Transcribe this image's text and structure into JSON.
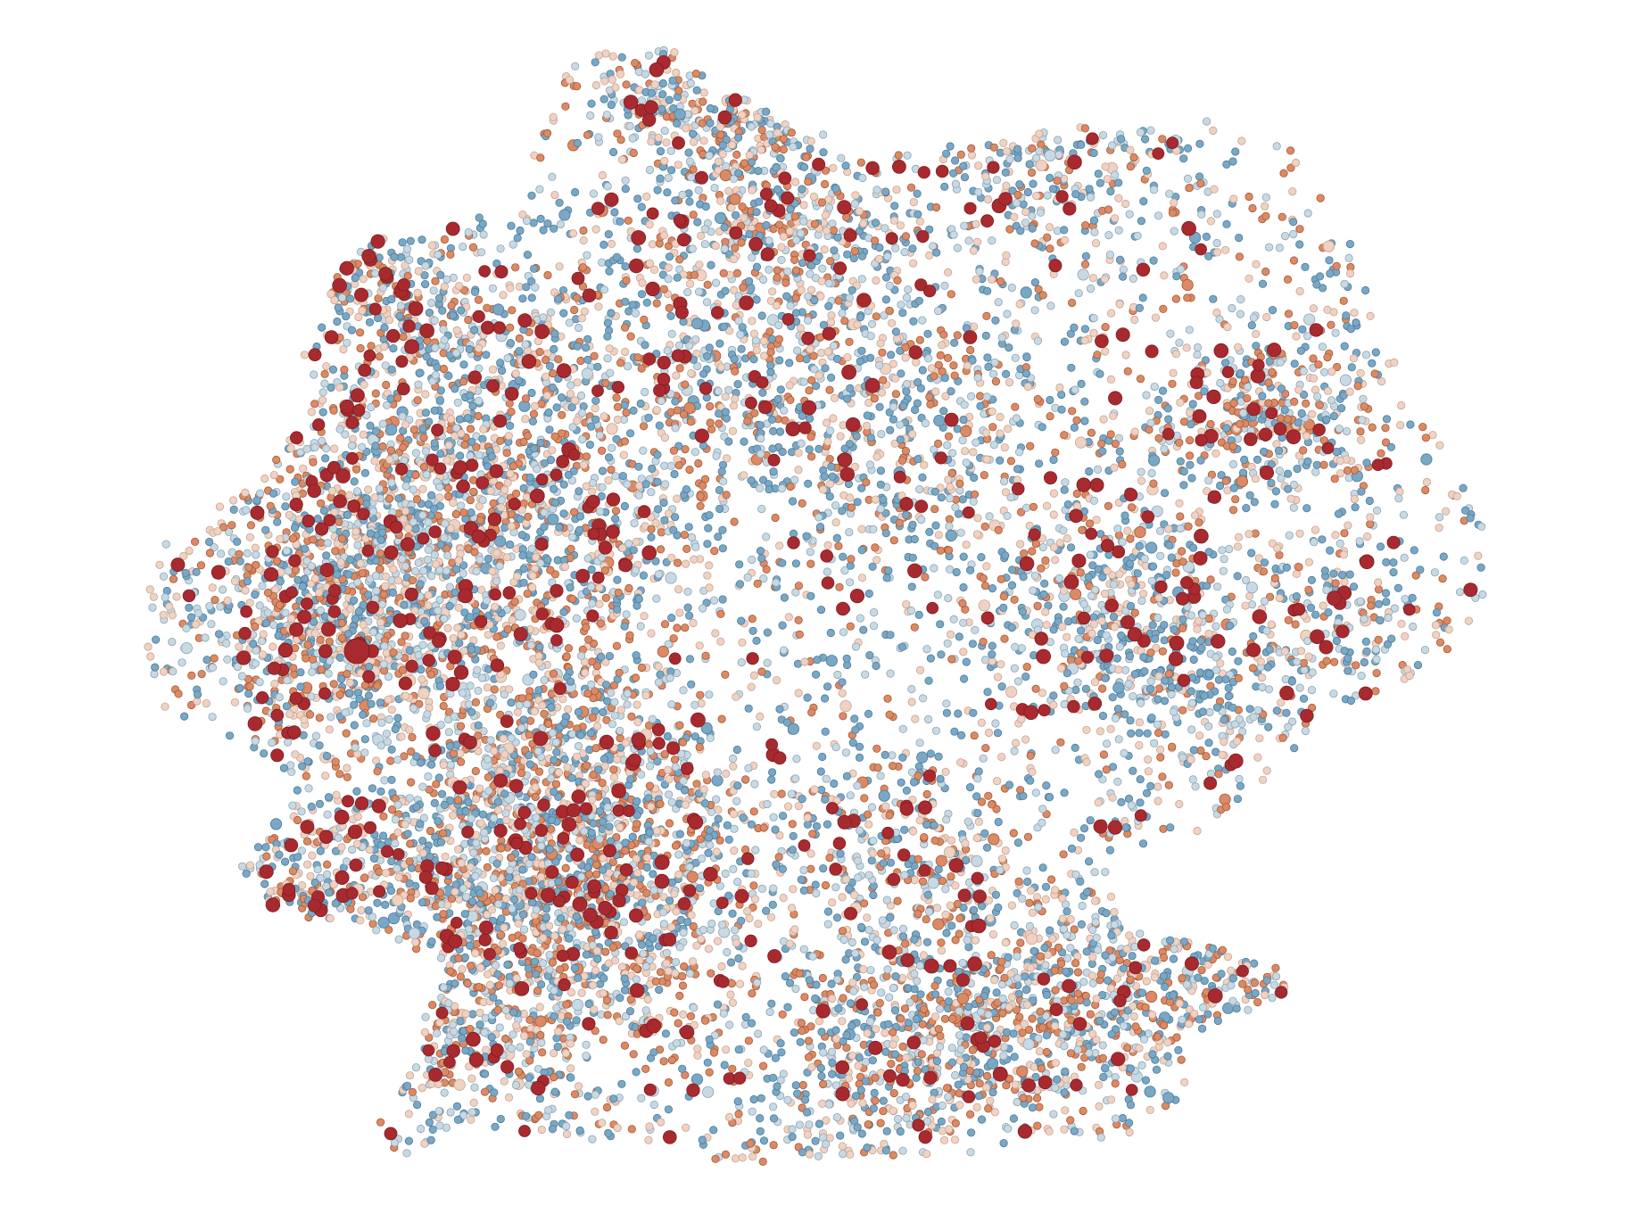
{
  "map": {
    "type": "dot-density",
    "background": "#ffffff",
    "stroke_colors": {
      "dark_red": "#7d1d22",
      "dark_orange": "#a35a37",
      "light_peach": "#c7a495",
      "light_blue": "#8aa6b6",
      "dark_blue": "#4e7d98"
    },
    "categories": [
      {
        "key": "dark_red",
        "color": "#a82a2f"
      },
      {
        "key": "dark_orange",
        "color": "#db8a65"
      },
      {
        "key": "light_peach",
        "color": "#efd2c2"
      },
      {
        "key": "light_blue",
        "color": "#c9d9e3"
      },
      {
        "key": "dark_blue",
        "color": "#79a7c5"
      }
    ]
  }
}
